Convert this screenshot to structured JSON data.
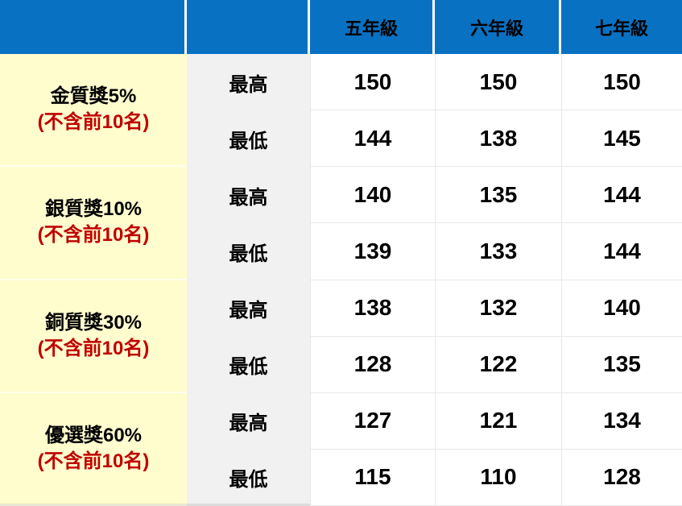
{
  "table": {
    "header": {
      "grade_columns": [
        "五年級",
        "六年級",
        "七年級"
      ]
    },
    "groups": [
      {
        "award": "金質獎5%",
        "note": "(不含前10名)",
        "rows": [
          {
            "measure": "最高",
            "values": [
              "150",
              "150",
              "150"
            ]
          },
          {
            "measure": "最低",
            "values": [
              "144",
              "138",
              "145"
            ]
          }
        ]
      },
      {
        "award": "銀質獎10%",
        "note": "(不含前10名)",
        "rows": [
          {
            "measure": "最高",
            "values": [
              "140",
              "135",
              "144"
            ]
          },
          {
            "measure": "最低",
            "values": [
              "139",
              "133",
              "144"
            ]
          }
        ]
      },
      {
        "award": "銅質獎30%",
        "note": "(不含前10名)",
        "rows": [
          {
            "measure": "最高",
            "values": [
              "138",
              "132",
              "140"
            ]
          },
          {
            "measure": "最低",
            "values": [
              "128",
              "122",
              "135"
            ]
          }
        ]
      },
      {
        "award": "優選獎60%",
        "note": "(不含前10名)",
        "rows": [
          {
            "measure": "最高",
            "values": [
              "127",
              "121",
              "134"
            ]
          },
          {
            "measure": "最低",
            "values": [
              "115",
              "110",
              "128"
            ]
          }
        ]
      }
    ]
  },
  "colors": {
    "header_bg": "#0971C2",
    "label_bg": "#FFFCCE",
    "measure_bg": "#F1F1F1",
    "note_red": "#C00000",
    "gridline": "#E8E8E8",
    "text": "#000000"
  },
  "chart_data": {
    "type": "table",
    "columns": [
      "",
      "",
      "五年級",
      "六年級",
      "七年級"
    ],
    "rows": [
      [
        "金質獎5% (不含前10名)",
        "最高",
        150,
        150,
        150
      ],
      [
        "金質獎5% (不含前10名)",
        "最低",
        144,
        138,
        145
      ],
      [
        "銀質獎10% (不含前10名)",
        "最高",
        140,
        135,
        144
      ],
      [
        "銀質獎10% (不含前10名)",
        "最低",
        139,
        133,
        144
      ],
      [
        "銅質獎30% (不含前10名)",
        "最高",
        138,
        132,
        140
      ],
      [
        "銅質獎30% (不含前10名)",
        "最低",
        128,
        122,
        135
      ],
      [
        "優選獎60% (不含前10名)",
        "最高",
        127,
        121,
        134
      ],
      [
        "優選獎60% (不含前10名)",
        "最低",
        115,
        110,
        128
      ]
    ]
  }
}
